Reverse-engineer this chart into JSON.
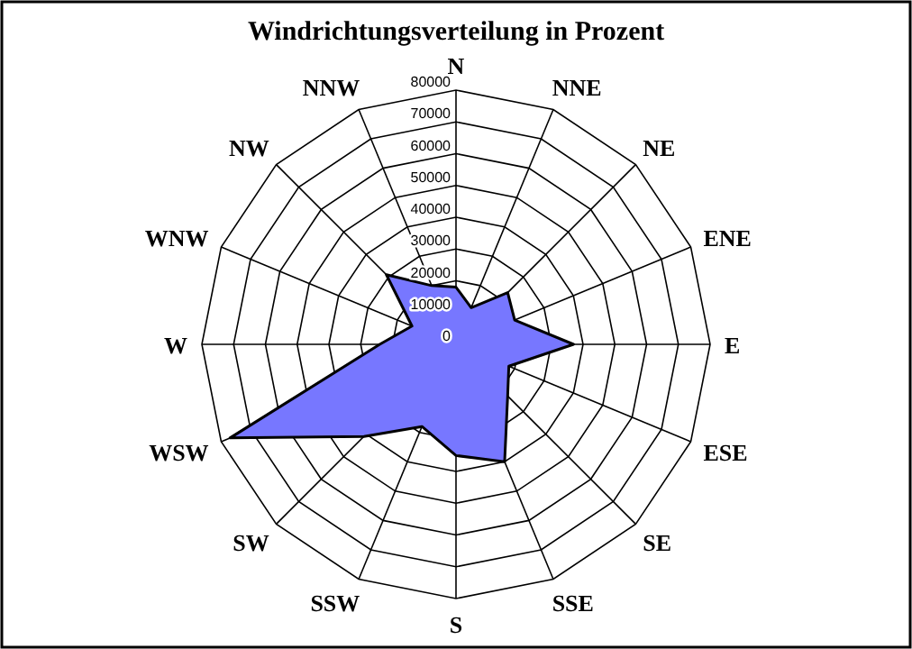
{
  "chart_data": {
    "type": "radar",
    "title": "Windrichtungsverteilung in Prozent",
    "categories": [
      "N",
      "NNE",
      "NE",
      "ENE",
      "E",
      "ESE",
      "SE",
      "SSE",
      "S",
      "SSW",
      "SW",
      "WSW",
      "W",
      "WNW",
      "NW",
      "NNW"
    ],
    "series": [
      {
        "color": "#7777ff",
        "values": [
          18000,
          12500,
          23000,
          20000,
          37000,
          18000,
          23000,
          40000,
          35000,
          28000,
          41000,
          77000,
          24000,
          15000,
          31000,
          20000
        ]
      }
    ],
    "ylim": [
      0,
      80000
    ],
    "yticks": [
      0,
      10000,
      20000,
      30000,
      40000,
      50000,
      60000,
      70000,
      80000
    ],
    "grid": true
  }
}
